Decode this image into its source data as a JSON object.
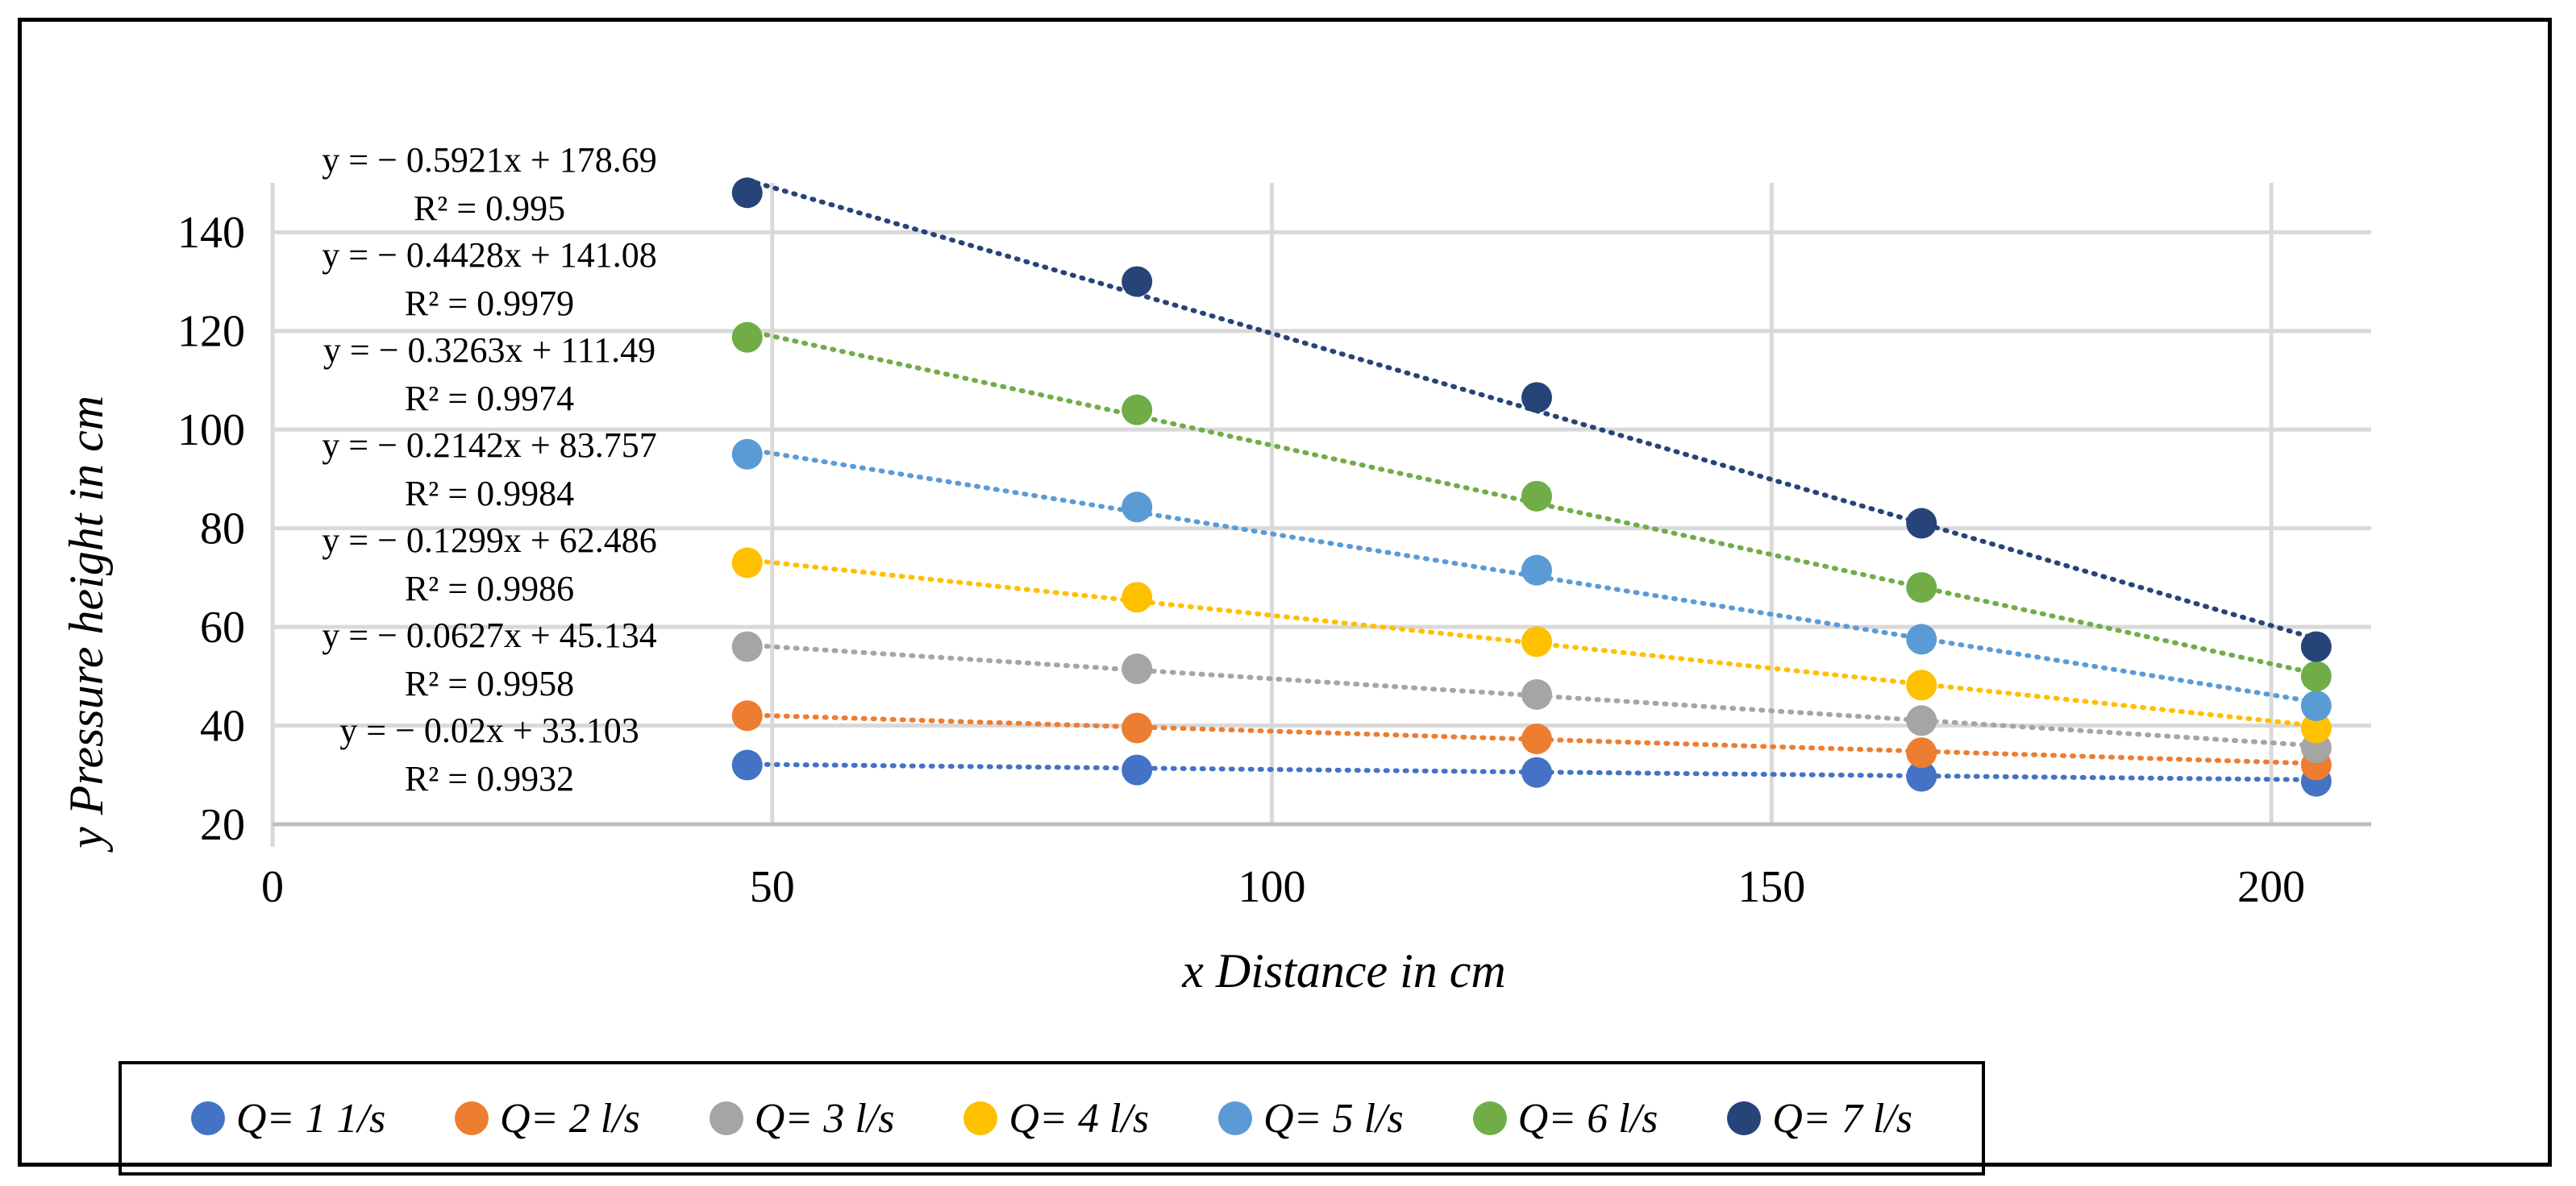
{
  "chart_data": {
    "type": "scatter",
    "xlabel": "x Distance in cm",
    "ylabel": "y  Pressure height in cm",
    "xlim": [
      0,
      210
    ],
    "ylim": [
      20,
      150
    ],
    "x_ticks": [
      0,
      50,
      100,
      150,
      200
    ],
    "y_ticks": [
      20,
      40,
      60,
      80,
      100,
      120,
      140
    ],
    "grid": true,
    "legend_position": "bottom",
    "x": [
      47.5,
      86.5,
      126.5,
      165,
      204.5
    ],
    "series": [
      {
        "name": "Q= 1 1/s",
        "color": "#4472C4",
        "values": [
          32,
          31,
          30.5,
          29.7,
          28.7
        ],
        "trend": {
          "slope": -0.02,
          "intercept": 33.103
        },
        "equation": "y = − 0.02x + 33.103",
        "r2": "R² = 0.9932"
      },
      {
        "name": "Q= 2 l/s",
        "color": "#ED7D31",
        "values": [
          42,
          39.5,
          37.3,
          34.5,
          32
        ],
        "trend": {
          "slope": -0.0627,
          "intercept": 45.134
        },
        "equation": "y = −  0.0627x + 45.134",
        "r2": "R² = 0.9958"
      },
      {
        "name": "Q= 3 l/s",
        "color": "#A5A5A5",
        "values": [
          56,
          51.5,
          46.3,
          41,
          35.5
        ],
        "trend": {
          "slope": -0.1299,
          "intercept": 62.486
        },
        "equation": "y = − 0.1299x + 62.486",
        "r2": "R² = 0.9986"
      },
      {
        "name": "Q= 4 l/s",
        "color": "#FFC000",
        "values": [
          73,
          66,
          57,
          48.2,
          39.5
        ],
        "trend": {
          "slope": -0.2142,
          "intercept": 83.757
        },
        "equation": "y = − 0.2142x + 83.757",
        "r2": "R² = 0.9984"
      },
      {
        "name": "Q= 5 l/s",
        "color": "#5B9BD5",
        "values": [
          95,
          84.3,
          71.5,
          57.5,
          44
        ],
        "trend": {
          "slope": -0.3263,
          "intercept": 111.49
        },
        "equation": "y = − 0.3263x + 111.49",
        "r2": "R² = 0.9974"
      },
      {
        "name": "Q= 6 l/s",
        "color": "#70AD47",
        "values": [
          118.7,
          104,
          86.5,
          68,
          50
        ],
        "trend": {
          "slope": -0.4428,
          "intercept": 141.08
        },
        "equation": "y = − 0.4428x + 141.08",
        "r2": "R² = 0.9979"
      },
      {
        "name": "Q= 7 l/s",
        "color": "#264478",
        "values": [
          148,
          130,
          106.5,
          81,
          56
        ],
        "trend": {
          "slope": -0.5921,
          "intercept": 178.69
        },
        "equation": "y = − 0.5921x + 178.69",
        "r2": "R² = 0.995"
      }
    ]
  }
}
